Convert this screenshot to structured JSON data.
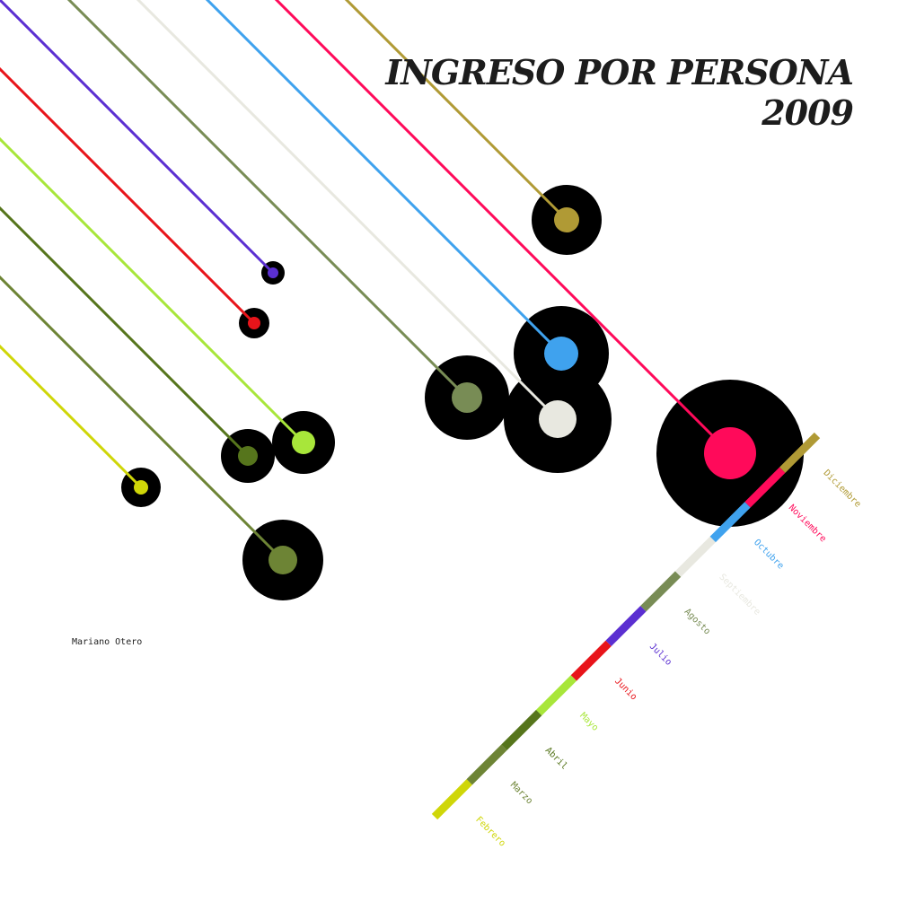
{
  "chart_data": {
    "type": "scatter",
    "title": "INGRESO POR PERSONA 2009",
    "author": "Mariano Otero",
    "months": [
      {
        "label": "Febrero",
        "color": "#cfd608",
        "value": 22
      },
      {
        "label": "Marzo",
        "color": "#6d8435",
        "value": 45
      },
      {
        "label": "Abril",
        "color": "#56751c",
        "value": 30
      },
      {
        "label": "Mayo",
        "color": "#a8e63a",
        "value": 35
      },
      {
        "label": "Junio",
        "color": "#e8141a",
        "value": 17
      },
      {
        "label": "Julio",
        "color": "#5b2fd1",
        "value": 13
      },
      {
        "label": "Agosto",
        "color": "#788c55",
        "value": 47
      },
      {
        "label": "Septiembre",
        "color": "#e8e8e0",
        "value": 60
      },
      {
        "label": "Octubre",
        "color": "#3fa2ee",
        "value": 53
      },
      {
        "label": "Noviembre",
        "color": "#ff0a5a",
        "value": 82
      },
      {
        "label": "Diciembre",
        "color": "#b09a35",
        "value": 39
      }
    ]
  }
}
